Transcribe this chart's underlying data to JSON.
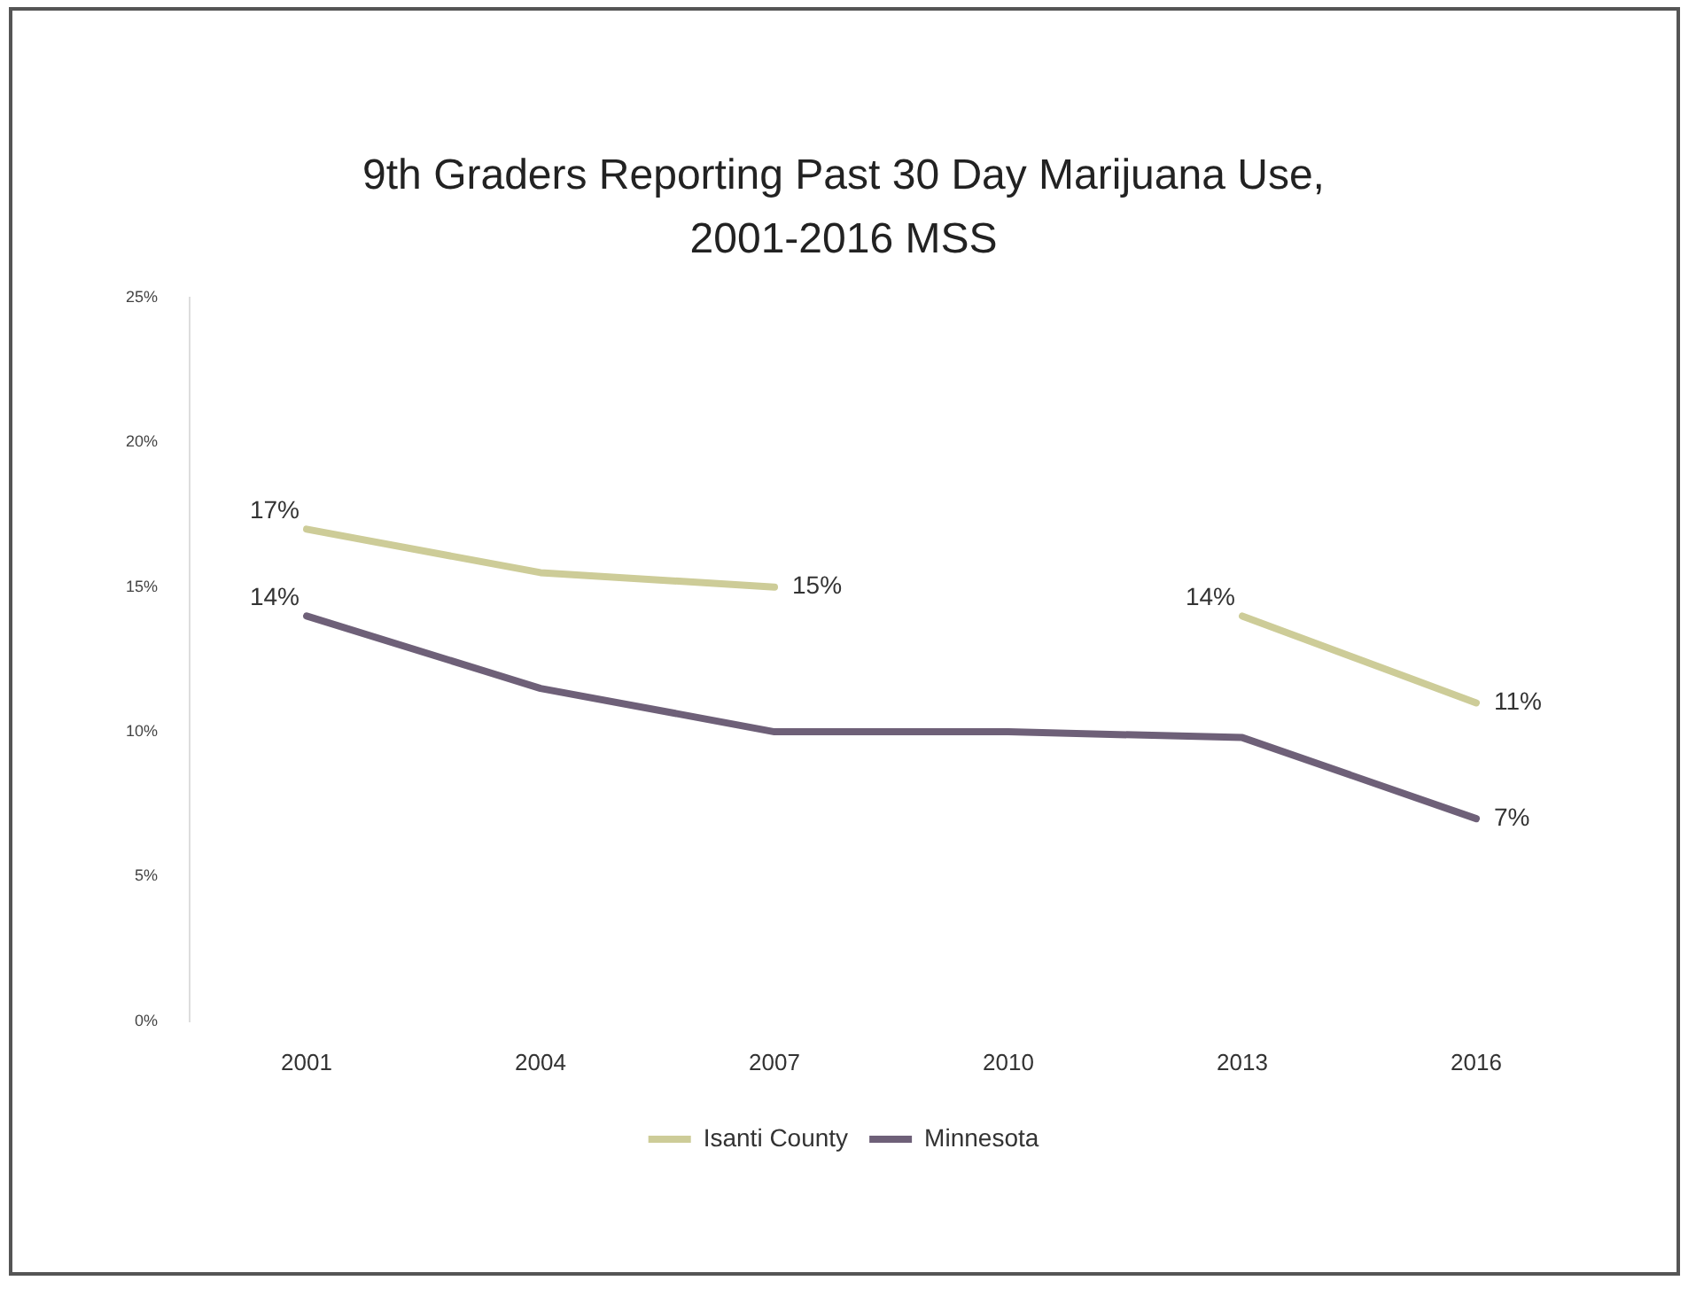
{
  "chart_data": {
    "type": "line",
    "title": "9th Graders Reporting Past 30 Day Marijuana Use, 2001-2016 MSS",
    "categories": [
      "2001",
      "2004",
      "2007",
      "2010",
      "2013",
      "2016"
    ],
    "series": [
      {
        "name": "Isanti County",
        "color": "#cdcc98",
        "values": [
          17,
          15.5,
          15,
          null,
          14,
          11
        ],
        "value_labels": [
          "17%",
          null,
          "15%",
          null,
          "14%",
          "11%"
        ]
      },
      {
        "name": "Minnesota",
        "color": "#6e6078",
        "values": [
          14,
          11.5,
          10,
          10,
          9.8,
          7
        ],
        "value_labels": [
          "14%",
          null,
          null,
          null,
          null,
          "7%"
        ]
      }
    ],
    "ylim": [
      0,
      25
    ],
    "yticks": [
      {
        "value": 0,
        "label": "0%"
      },
      {
        "value": 5,
        "label": "5%"
      },
      {
        "value": 10,
        "label": "10%"
      },
      {
        "value": 15,
        "label": "15%"
      },
      {
        "value": 20,
        "label": "20%"
      },
      {
        "value": 25,
        "label": "25%"
      }
    ],
    "grid": false,
    "legend": "bottom",
    "marker": "none",
    "line_style": "solid"
  }
}
